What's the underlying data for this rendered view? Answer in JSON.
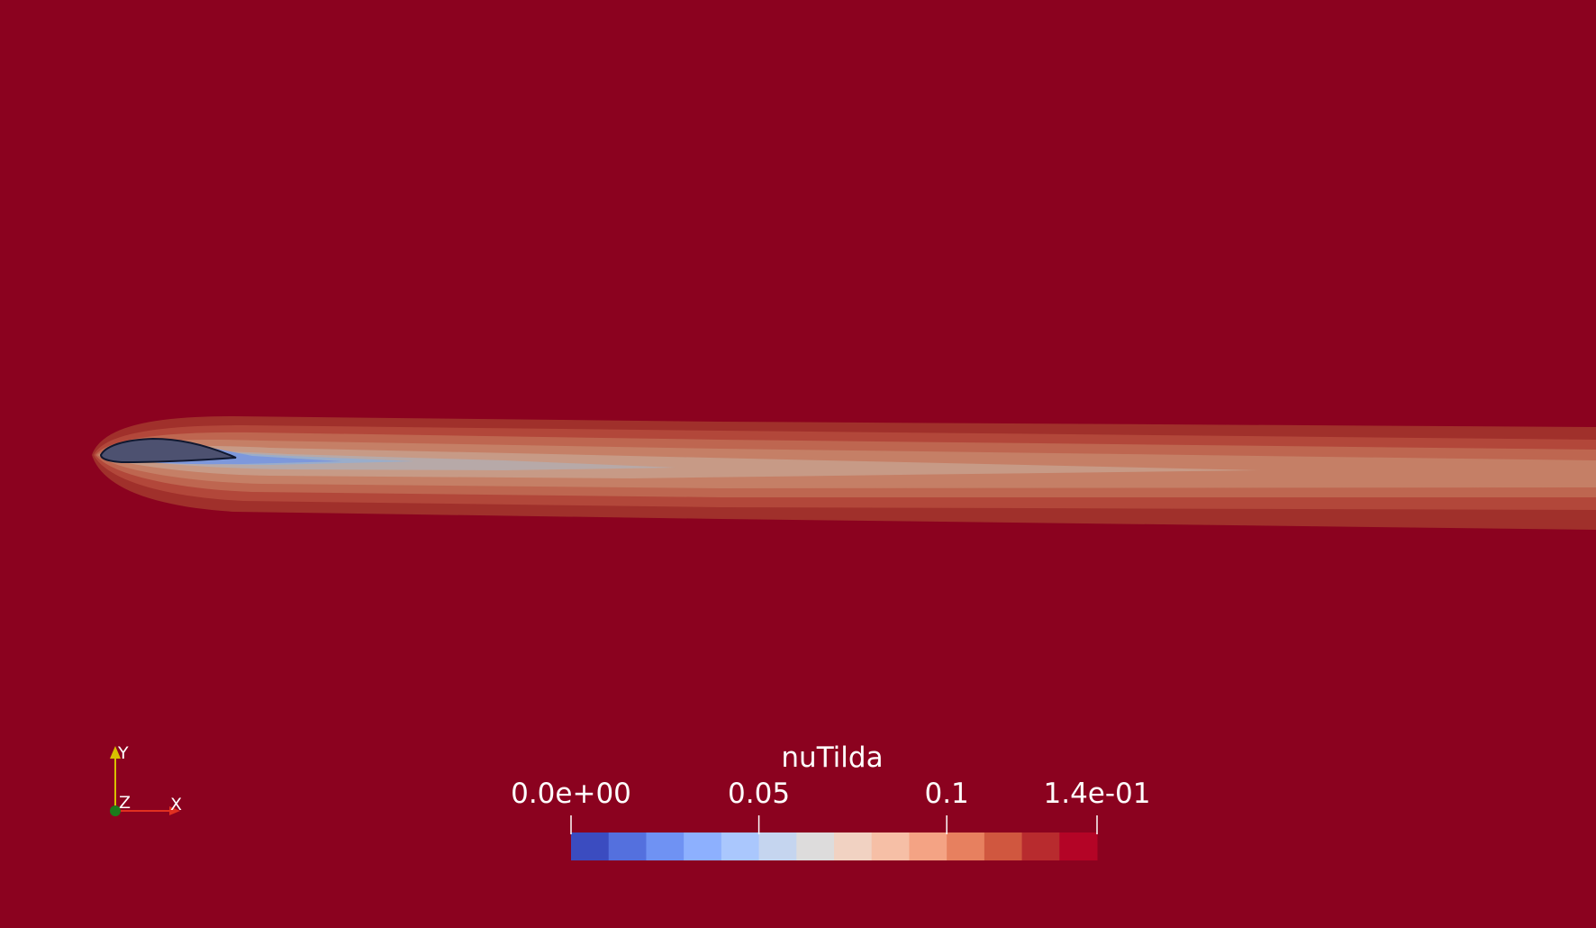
{
  "field_name": "nuTilda",
  "colorbar": {
    "tick_labels": [
      "0.0e+00",
      "0.05",
      "0.1",
      "1.4e-01"
    ],
    "tick_values": [
      0.0,
      0.05,
      0.1,
      0.14
    ],
    "range": [
      0.0,
      0.14
    ],
    "bins": [
      "#3b4cc0",
      "#5470de",
      "#6f92f3",
      "#8db0fe",
      "#aac7fd",
      "#c5d5ef",
      "#dddcdc",
      "#f1d2c2",
      "#f6bfa6",
      "#f4a384",
      "#e7805f",
      "#d0573f",
      "#b82b2e",
      "#b40426"
    ]
  },
  "axes": {
    "x": "X",
    "y": "Y",
    "z": "Z"
  },
  "colors": {
    "background": "#8b021f",
    "airfoil": "#4d5170"
  }
}
